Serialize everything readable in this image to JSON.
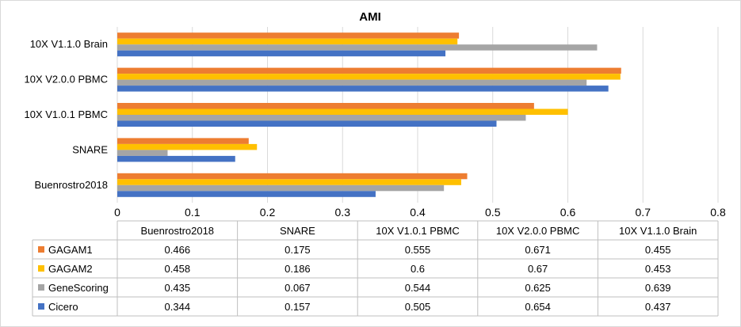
{
  "chart_data": {
    "type": "bar",
    "orientation": "horizontal",
    "title": "AMI",
    "categories": [
      "Buenrostro2018",
      "SNARE",
      "10X V1.0.1 PBMC",
      "10X V2.0.0 PBMC",
      "10X V1.1.0 Brain"
    ],
    "series": [
      {
        "name": "GAGAM1",
        "color": "#ed7d31",
        "values": [
          0.466,
          0.175,
          0.555,
          0.671,
          0.455
        ]
      },
      {
        "name": "GAGAM2",
        "color": "#ffc000",
        "values": [
          0.458,
          0.186,
          0.6,
          0.67,
          0.453
        ]
      },
      {
        "name": "GeneScoring",
        "color": "#a5a5a5",
        "values": [
          0.435,
          0.067,
          0.544,
          0.625,
          0.639
        ]
      },
      {
        "name": "Cicero",
        "color": "#4472c4",
        "values": [
          0.344,
          0.157,
          0.505,
          0.654,
          0.437
        ]
      }
    ],
    "xlim": [
      0,
      0.8
    ],
    "xticks": [
      "0",
      "0.1",
      "0.2",
      "0.3",
      "0.4",
      "0.5",
      "0.6",
      "0.7",
      "0.8"
    ],
    "table_values": [
      [
        "0.466",
        "0.175",
        "0.555",
        "0.671",
        "0.455"
      ],
      [
        "0.458",
        "0.186",
        "0.6",
        "0.67",
        "0.453"
      ],
      [
        "0.435",
        "0.067",
        "0.544",
        "0.625",
        "0.639"
      ],
      [
        "0.344",
        "0.157",
        "0.505",
        "0.654",
        "0.437"
      ]
    ],
    "grid": true,
    "legend": "data-table"
  }
}
